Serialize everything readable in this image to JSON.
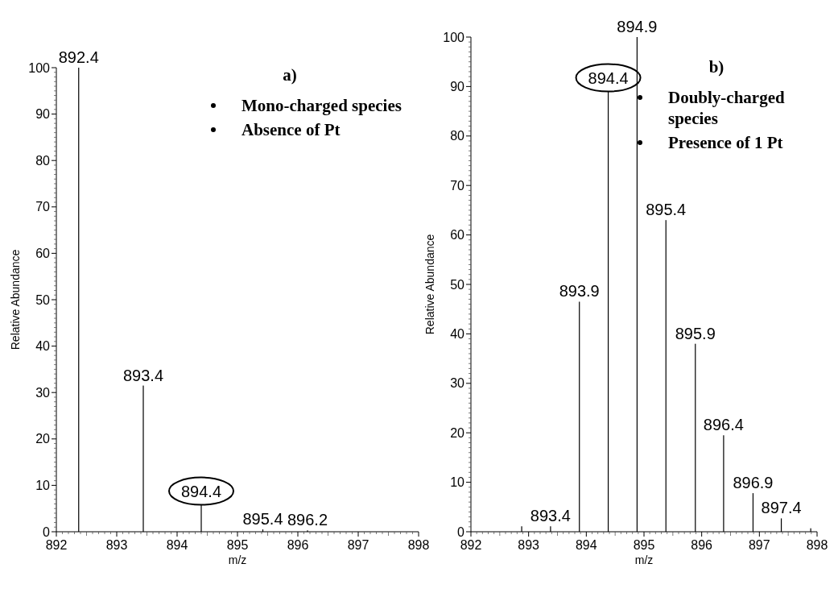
{
  "chart_data": [
    {
      "type": "bar",
      "xlabel": "m/z",
      "ylabel": "Relative Abundance",
      "x": [
        892.37,
        893.44,
        894.4,
        895.42,
        896.16
      ],
      "values": [
        100,
        31.5,
        5.8,
        0.5,
        0.3
      ],
      "color": "#000000",
      "xlim": [
        892,
        898
      ],
      "xticks": [
        892,
        893,
        894,
        895,
        896,
        897,
        898
      ],
      "ylim": [
        0,
        100
      ],
      "yticks": [
        0,
        10,
        20,
        30,
        40,
        50,
        60,
        70,
        80,
        90,
        100
      ],
      "grid": false,
      "annotations": [
        "a)",
        "Mono-charged species",
        "Absence of Pt",
        {
          "text": "894.4",
          "x": 894.4,
          "y": 5.8
        },
        {
          "text": "892.4",
          "x": 892.37,
          "y": 100
        },
        {
          "text": "893.4",
          "x": 893.44,
          "y": 31.5
        },
        {
          "text": "895.4",
          "x": 895.42,
          "y": 0.5
        },
        {
          "text": "896.2",
          "x": 896.16,
          "y": 0.3
        }
      ]
    },
    {
      "type": "bar",
      "xlabel": "m/z",
      "ylabel": "Relative Abundance",
      "x": [
        892.88,
        893.38,
        893.88,
        894.38,
        894.88,
        895.38,
        895.89,
        896.38,
        896.89,
        897.38,
        897.89
      ],
      "values": [
        1.1,
        1.1,
        46.5,
        89,
        100,
        63,
        38,
        19.5,
        7.8,
        2.7,
        0.7
      ],
      "color": "#000000",
      "xlim": [
        892,
        898
      ],
      "xticks": [
        892,
        893,
        894,
        895,
        896,
        897,
        898
      ],
      "ylim": [
        0,
        100
      ],
      "yticks": [
        0,
        10,
        20,
        30,
        40,
        50,
        60,
        70,
        80,
        90,
        100
      ],
      "grid": false,
      "annotations": [
        "b)",
        "Doubly-charged species",
        "Presence of 1 Pt",
        {
          "text": "894.4",
          "x": 894.38,
          "y": 89
        },
        {
          "text": "893.4",
          "x": 893.38,
          "y": 1.1
        },
        {
          "text": "893.9",
          "x": 893.88,
          "y": 46.5
        },
        {
          "text": "894.9",
          "x": 894.88,
          "y": 100
        },
        {
          "text": "895.4",
          "x": 895.38,
          "y": 63
        },
        {
          "text": "895.9",
          "x": 895.89,
          "y": 38
        },
        {
          "text": "896.4",
          "x": 896.38,
          "y": 19.5
        },
        {
          "text": "896.9",
          "x": 896.89,
          "y": 7.8
        },
        {
          "text": "897.4",
          "x": 897.38,
          "y": 2.7
        }
      ]
    }
  ]
}
